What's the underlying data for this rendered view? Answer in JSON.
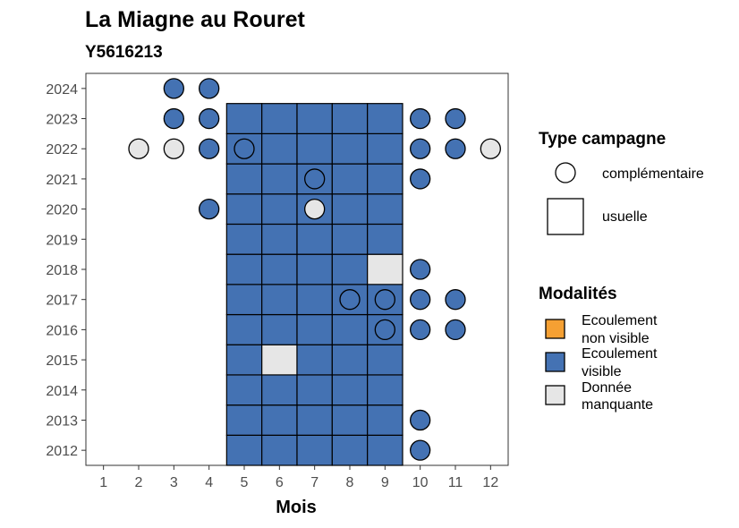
{
  "chart_data": {
    "type": "heatmap",
    "title": "La Miagne au Rouret",
    "subtitle": "Y5616213",
    "xlabel": "Mois",
    "ylabel": "",
    "x_ticks": [
      1,
      2,
      3,
      4,
      5,
      6,
      7,
      8,
      9,
      10,
      11,
      12
    ],
    "y_ticks": [
      2012,
      2013,
      2014,
      2015,
      2016,
      2017,
      2018,
      2019,
      2020,
      2021,
      2022,
      2023,
      2024
    ],
    "xlim": [
      0.5,
      12.5
    ],
    "ylim": [
      2011.5,
      2024.5
    ],
    "grid": false,
    "colors": {
      "ecoulement_non_visible": "#f5a033",
      "ecoulement_visible": "#4472b3",
      "donnee_manquante": "#e6e6e6"
    },
    "legend_campagne": {
      "title": "Type campagne",
      "items": [
        {
          "label": "complémentaire",
          "shape": "circle"
        },
        {
          "label": "usuelle",
          "shape": "square"
        }
      ]
    },
    "legend_modalites": {
      "title": "Modalités",
      "items": [
        {
          "lines": [
            "Ecoulement",
            "non visible"
          ],
          "color": "#f5a033"
        },
        {
          "lines": [
            "Ecoulement",
            "visible"
          ],
          "color": "#4472b3"
        },
        {
          "lines": [
            "Donnée",
            "manquante"
          ],
          "color": "#e6e6e6"
        }
      ]
    },
    "squares": [
      {
        "month": 5,
        "year": 2012,
        "modalite": "visible"
      },
      {
        "month": 6,
        "year": 2012,
        "modalite": "visible"
      },
      {
        "month": 7,
        "year": 2012,
        "modalite": "visible"
      },
      {
        "month": 8,
        "year": 2012,
        "modalite": "visible"
      },
      {
        "month": 9,
        "year": 2012,
        "modalite": "visible"
      },
      {
        "month": 5,
        "year": 2013,
        "modalite": "visible"
      },
      {
        "month": 6,
        "year": 2013,
        "modalite": "visible"
      },
      {
        "month": 7,
        "year": 2013,
        "modalite": "visible"
      },
      {
        "month": 8,
        "year": 2013,
        "modalite": "visible"
      },
      {
        "month": 9,
        "year": 2013,
        "modalite": "visible"
      },
      {
        "month": 5,
        "year": 2014,
        "modalite": "visible"
      },
      {
        "month": 6,
        "year": 2014,
        "modalite": "visible"
      },
      {
        "month": 7,
        "year": 2014,
        "modalite": "visible"
      },
      {
        "month": 8,
        "year": 2014,
        "modalite": "visible"
      },
      {
        "month": 9,
        "year": 2014,
        "modalite": "visible"
      },
      {
        "month": 5,
        "year": 2015,
        "modalite": "visible"
      },
      {
        "month": 6,
        "year": 2015,
        "modalite": "manquante"
      },
      {
        "month": 7,
        "year": 2015,
        "modalite": "visible"
      },
      {
        "month": 8,
        "year": 2015,
        "modalite": "visible"
      },
      {
        "month": 9,
        "year": 2015,
        "modalite": "visible"
      },
      {
        "month": 5,
        "year": 2016,
        "modalite": "visible"
      },
      {
        "month": 6,
        "year": 2016,
        "modalite": "visible"
      },
      {
        "month": 7,
        "year": 2016,
        "modalite": "visible"
      },
      {
        "month": 8,
        "year": 2016,
        "modalite": "visible"
      },
      {
        "month": 9,
        "year": 2016,
        "modalite": "visible"
      },
      {
        "month": 5,
        "year": 2017,
        "modalite": "visible"
      },
      {
        "month": 6,
        "year": 2017,
        "modalite": "visible"
      },
      {
        "month": 7,
        "year": 2017,
        "modalite": "visible"
      },
      {
        "month": 8,
        "year": 2017,
        "modalite": "visible"
      },
      {
        "month": 9,
        "year": 2017,
        "modalite": "visible"
      },
      {
        "month": 5,
        "year": 2018,
        "modalite": "visible"
      },
      {
        "month": 6,
        "year": 2018,
        "modalite": "visible"
      },
      {
        "month": 7,
        "year": 2018,
        "modalite": "visible"
      },
      {
        "month": 8,
        "year": 2018,
        "modalite": "visible"
      },
      {
        "month": 9,
        "year": 2018,
        "modalite": "manquante"
      },
      {
        "month": 5,
        "year": 2019,
        "modalite": "visible"
      },
      {
        "month": 6,
        "year": 2019,
        "modalite": "visible"
      },
      {
        "month": 7,
        "year": 2019,
        "modalite": "visible"
      },
      {
        "month": 8,
        "year": 2019,
        "modalite": "visible"
      },
      {
        "month": 9,
        "year": 2019,
        "modalite": "visible"
      },
      {
        "month": 5,
        "year": 2020,
        "modalite": "visible"
      },
      {
        "month": 6,
        "year": 2020,
        "modalite": "visible"
      },
      {
        "month": 7,
        "year": 2020,
        "modalite": "visible"
      },
      {
        "month": 8,
        "year": 2020,
        "modalite": "visible"
      },
      {
        "month": 9,
        "year": 2020,
        "modalite": "visible"
      },
      {
        "month": 5,
        "year": 2021,
        "modalite": "visible"
      },
      {
        "month": 6,
        "year": 2021,
        "modalite": "visible"
      },
      {
        "month": 7,
        "year": 2021,
        "modalite": "visible"
      },
      {
        "month": 8,
        "year": 2021,
        "modalite": "visible"
      },
      {
        "month": 9,
        "year": 2021,
        "modalite": "visible"
      },
      {
        "month": 5,
        "year": 2022,
        "modalite": "visible"
      },
      {
        "month": 6,
        "year": 2022,
        "modalite": "visible"
      },
      {
        "month": 7,
        "year": 2022,
        "modalite": "visible"
      },
      {
        "month": 8,
        "year": 2022,
        "modalite": "visible"
      },
      {
        "month": 9,
        "year": 2022,
        "modalite": "visible"
      },
      {
        "month": 5,
        "year": 2023,
        "modalite": "visible"
      },
      {
        "month": 6,
        "year": 2023,
        "modalite": "visible"
      },
      {
        "month": 7,
        "year": 2023,
        "modalite": "visible"
      },
      {
        "month": 8,
        "year": 2023,
        "modalite": "visible"
      },
      {
        "month": 9,
        "year": 2023,
        "modalite": "visible"
      }
    ],
    "circles": [
      {
        "month": 3,
        "year": 2024,
        "modalite": "visible"
      },
      {
        "month": 4,
        "year": 2024,
        "modalite": "visible"
      },
      {
        "month": 3,
        "year": 2023,
        "modalite": "visible"
      },
      {
        "month": 4,
        "year": 2023,
        "modalite": "visible"
      },
      {
        "month": 10,
        "year": 2023,
        "modalite": "visible"
      },
      {
        "month": 11,
        "year": 2023,
        "modalite": "visible"
      },
      {
        "month": 2,
        "year": 2022,
        "modalite": "manquante"
      },
      {
        "month": 3,
        "year": 2022,
        "modalite": "manquante"
      },
      {
        "month": 4,
        "year": 2022,
        "modalite": "visible"
      },
      {
        "month": 5,
        "year": 2022,
        "modalite": "visible"
      },
      {
        "month": 10,
        "year": 2022,
        "modalite": "visible"
      },
      {
        "month": 11,
        "year": 2022,
        "modalite": "visible"
      },
      {
        "month": 12,
        "year": 2022,
        "modalite": "manquante"
      },
      {
        "month": 7,
        "year": 2021,
        "modalite": "visible"
      },
      {
        "month": 10,
        "year": 2021,
        "modalite": "visible"
      },
      {
        "month": 4,
        "year": 2020,
        "modalite": "visible"
      },
      {
        "month": 7,
        "year": 2020,
        "modalite": "manquante"
      },
      {
        "month": 10,
        "year": 2018,
        "modalite": "visible"
      },
      {
        "month": 8,
        "year": 2017,
        "modalite": "visible"
      },
      {
        "month": 9,
        "year": 2017,
        "modalite": "visible"
      },
      {
        "month": 10,
        "year": 2017,
        "modalite": "visible"
      },
      {
        "month": 11,
        "year": 2017,
        "modalite": "visible"
      },
      {
        "month": 9,
        "year": 2016,
        "modalite": "visible"
      },
      {
        "month": 10,
        "year": 2016,
        "modalite": "visible"
      },
      {
        "month": 11,
        "year": 2016,
        "modalite": "visible"
      },
      {
        "month": 10,
        "year": 2013,
        "modalite": "visible"
      },
      {
        "month": 10,
        "year": 2012,
        "modalite": "visible"
      }
    ]
  }
}
